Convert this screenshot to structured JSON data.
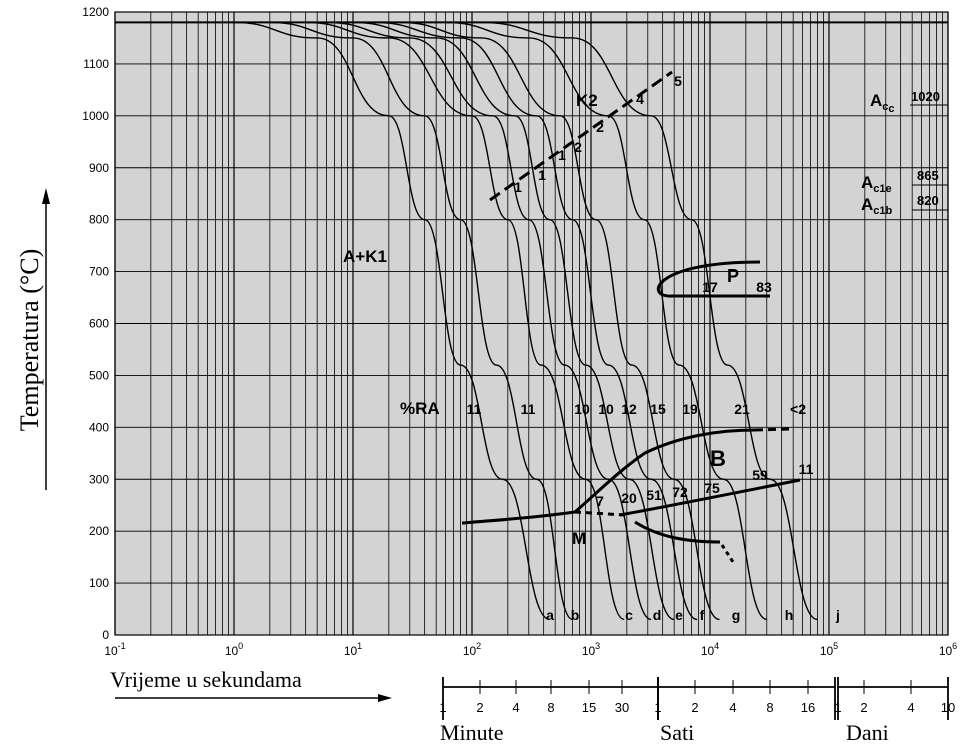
{
  "chart_data": {
    "type": "line",
    "x_scale": "log",
    "xlim": [
      0.1,
      1000000
    ],
    "ylim": [
      0,
      1200
    ],
    "grid": true,
    "background": "#d3d3d3",
    "ylabel": "Temperatura (°C)",
    "xlabel": "Vrijeme u sekundama",
    "x_ticks": [
      "10-1",
      "100",
      "101",
      "102",
      "103",
      "104",
      "105",
      "106"
    ],
    "y_ticks": [
      0,
      100,
      200,
      300,
      400,
      500,
      600,
      700,
      800,
      900,
      1000,
      1100,
      1200
    ],
    "time_scales": [
      {
        "name": "Minute",
        "ticks": [
          "1",
          "2",
          "4",
          "8",
          "15",
          "30"
        ]
      },
      {
        "name": "Sati",
        "ticks": [
          "1",
          "2",
          "4",
          "8",
          "16"
        ]
      },
      {
        "name": "Dani",
        "ticks": [
          "1",
          "2",
          "4",
          "10"
        ]
      }
    ],
    "critical_temperatures": [
      {
        "label": "Acc",
        "value": "1020"
      },
      {
        "label": "Ac1e",
        "value": "865"
      },
      {
        "label": "Ac1b",
        "value": "820"
      }
    ],
    "region_labels": [
      "A+K1",
      "K2",
      "P",
      "B",
      "M",
      "%RA"
    ],
    "cooling_curves": [
      {
        "name": "a",
        "points": [
          [
            1,
            1180
          ],
          [
            5,
            1150
          ],
          [
            20,
            1000
          ],
          [
            40,
            800
          ],
          [
            80,
            520
          ],
          [
            180,
            300
          ],
          [
            450,
            30
          ]
        ]
      },
      {
        "name": "b",
        "points": [
          [
            2,
            1180
          ],
          [
            10,
            1150
          ],
          [
            40,
            1000
          ],
          [
            80,
            800
          ],
          [
            160,
            520
          ],
          [
            350,
            300
          ],
          [
            700,
            30
          ]
        ]
      },
      {
        "name": "c",
        "points": [
          [
            4,
            1180
          ],
          [
            20,
            1150
          ],
          [
            100,
            1000
          ],
          [
            200,
            800
          ],
          [
            380,
            520
          ],
          [
            900,
            300
          ],
          [
            1900,
            30
          ]
        ]
      },
      {
        "name": "d",
        "points": [
          [
            6,
            1180
          ],
          [
            30,
            1150
          ],
          [
            150,
            1000
          ],
          [
            300,
            800
          ],
          [
            600,
            520
          ],
          [
            1400,
            300
          ],
          [
            3200,
            30
          ]
        ]
      },
      {
        "name": "e",
        "points": [
          [
            10,
            1180
          ],
          [
            50,
            1150
          ],
          [
            230,
            1000
          ],
          [
            450,
            800
          ],
          [
            900,
            520
          ],
          [
            2100,
            300
          ],
          [
            5000,
            30
          ]
        ]
      },
      {
        "name": "f",
        "points": [
          [
            15,
            1180
          ],
          [
            80,
            1150
          ],
          [
            350,
            1000
          ],
          [
            700,
            800
          ],
          [
            1400,
            520
          ],
          [
            3200,
            300
          ],
          [
            7800,
            30
          ]
        ]
      },
      {
        "name": "g",
        "points": [
          [
            25,
            1180
          ],
          [
            120,
            1150
          ],
          [
            550,
            1000
          ],
          [
            1100,
            800
          ],
          [
            2200,
            520
          ],
          [
            5000,
            300
          ],
          [
            12000,
            30
          ]
        ]
      },
      {
        "name": "h",
        "points": [
          [
            60,
            1180
          ],
          [
            300,
            1150
          ],
          [
            1400,
            1000
          ],
          [
            2800,
            800
          ],
          [
            5500,
            520
          ],
          [
            13000,
            300
          ],
          [
            30000,
            30
          ]
        ]
      },
      {
        "name": "j",
        "points": [
          [
            120,
            1180
          ],
          [
            700,
            1150
          ],
          [
            3200,
            1000
          ],
          [
            7000,
            800
          ],
          [
            14000,
            520
          ],
          [
            32000,
            300
          ],
          [
            80000,
            30
          ]
        ]
      }
    ],
    "hardness_labels": [
      "11",
      "11",
      "10",
      "10",
      "12",
      "15",
      "19",
      "21",
      "<2"
    ],
    "phase_percent_labels": [
      "1",
      "1",
      "1",
      "2",
      "2",
      "4",
      "5",
      "17",
      "83",
      "7",
      "20",
      "51",
      "72",
      "75",
      "59",
      "11"
    ]
  }
}
